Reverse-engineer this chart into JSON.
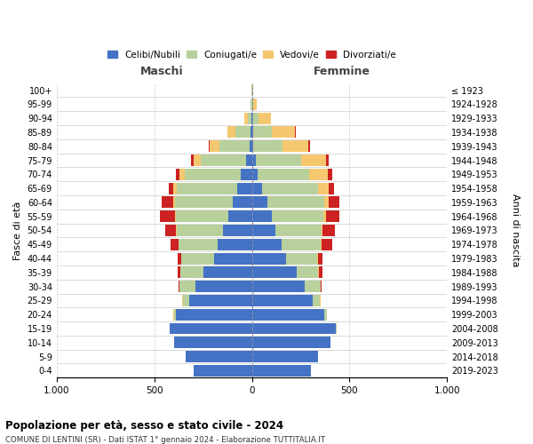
{
  "age_groups": [
    "0-4",
    "5-9",
    "10-14",
    "15-19",
    "20-24",
    "25-29",
    "30-34",
    "35-39",
    "40-44",
    "45-49",
    "50-54",
    "55-59",
    "60-64",
    "65-69",
    "70-74",
    "75-79",
    "80-84",
    "85-89",
    "90-94",
    "95-99",
    "100+"
  ],
  "birth_years": [
    "2019-2023",
    "2014-2018",
    "2009-2013",
    "2004-2008",
    "1999-2003",
    "1994-1998",
    "1989-1993",
    "1984-1988",
    "1979-1983",
    "1974-1978",
    "1969-1973",
    "1964-1968",
    "1959-1963",
    "1954-1958",
    "1949-1953",
    "1944-1948",
    "1939-1943",
    "1934-1938",
    "1929-1933",
    "1924-1928",
    "≤ 1923"
  ],
  "maschi": {
    "celibi": [
      300,
      340,
      400,
      420,
      390,
      320,
      290,
      250,
      195,
      175,
      150,
      120,
      100,
      75,
      55,
      30,
      10,
      5,
      2,
      0,
      0
    ],
    "coniugati": [
      0,
      0,
      0,
      3,
      10,
      35,
      80,
      115,
      165,
      200,
      235,
      270,
      295,
      310,
      290,
      230,
      155,
      80,
      20,
      5,
      2
    ],
    "vedovi": [
      0,
      0,
      0,
      0,
      3,
      2,
      2,
      2,
      2,
      3,
      4,
      5,
      10,
      18,
      25,
      40,
      50,
      40,
      15,
      2,
      0
    ],
    "divorziati": [
      0,
      0,
      0,
      0,
      0,
      2,
      5,
      15,
      18,
      40,
      55,
      75,
      55,
      25,
      18,
      10,
      5,
      2,
      0,
      0,
      0
    ]
  },
  "femmine": {
    "nubili": [
      300,
      340,
      400,
      430,
      370,
      310,
      270,
      230,
      175,
      150,
      120,
      100,
      80,
      50,
      30,
      20,
      8,
      5,
      2,
      0,
      0
    ],
    "coniugate": [
      0,
      0,
      0,
      3,
      12,
      38,
      80,
      110,
      160,
      200,
      235,
      265,
      290,
      290,
      265,
      230,
      150,
      95,
      30,
      5,
      2
    ],
    "vedove": [
      0,
      0,
      0,
      0,
      3,
      3,
      3,
      3,
      5,
      5,
      8,
      15,
      25,
      55,
      95,
      130,
      130,
      120,
      65,
      20,
      3
    ],
    "divorziate": [
      0,
      0,
      0,
      0,
      0,
      2,
      5,
      18,
      20,
      55,
      60,
      70,
      55,
      25,
      20,
      15,
      10,
      5,
      2,
      0,
      0
    ]
  },
  "colors": {
    "celibi": "#4472c4",
    "coniugati": "#b8d09b",
    "vedovi": "#f5c870",
    "divorziati": "#cc2222"
  },
  "xlim": 1000,
  "title": "Popolazione per età, sesso e stato civile - 2024",
  "subtitle": "COMUNE DI LENTINI (SR) - Dati ISTAT 1° gennaio 2024 - Elaborazione TUTTITALIA.IT",
  "xlabel_maschi": "Maschi",
  "xlabel_femmine": "Femmine",
  "ylabel_left": "Fasce di età",
  "ylabel_right": "Anni di nascita"
}
